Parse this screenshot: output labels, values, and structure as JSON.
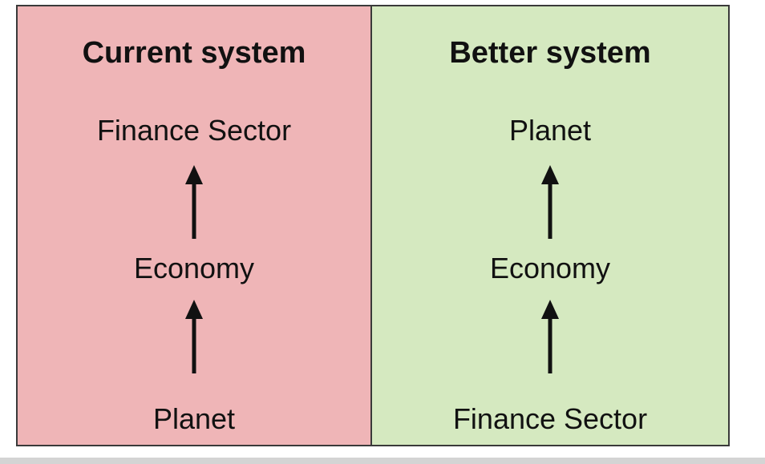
{
  "colors": {
    "current_bg": "#efb5b7",
    "better_bg": "#d5e9c0",
    "border": "#3a3a3a",
    "arrow": "#111111"
  },
  "current": {
    "title": "Current system",
    "top": "Finance Sector",
    "middle": "Economy",
    "bottom": "Planet"
  },
  "better": {
    "title": "Better system",
    "top": "Planet",
    "middle": "Economy",
    "bottom": "Finance Sector"
  },
  "icons": {
    "arrow": "arrow-up-icon"
  }
}
